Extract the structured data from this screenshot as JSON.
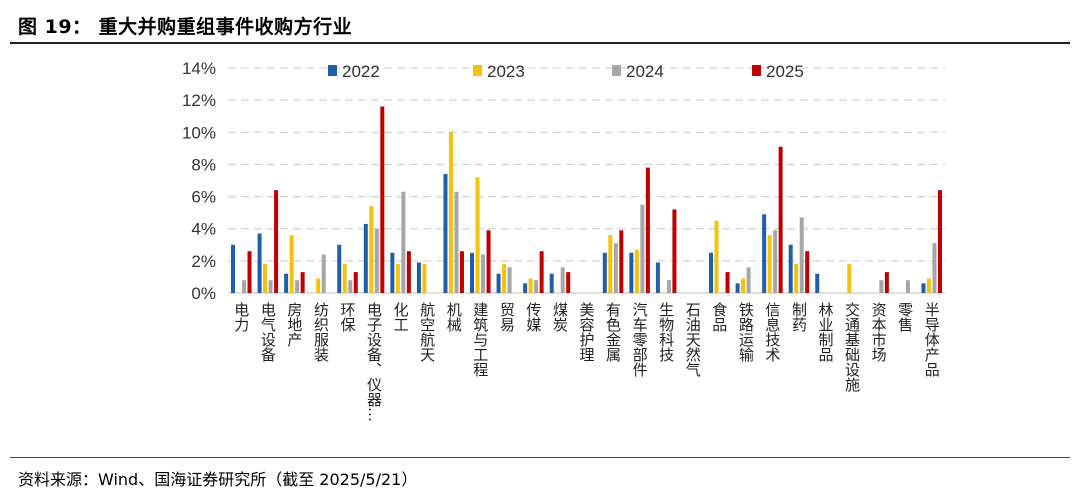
{
  "header": {
    "title": "图 19： 重大并购重组事件收购方行业"
  },
  "footer": {
    "source": "资料来源：Wind、国海证券研究所（截至 2025/5/21）"
  },
  "chart_data": {
    "type": "bar",
    "ylim": [
      0,
      14
    ],
    "yticks": [
      "0%",
      "2%",
      "4%",
      "6%",
      "8%",
      "10%",
      "12%",
      "14%"
    ],
    "grid": true,
    "legend_position": "top",
    "categories": [
      "电力",
      "电气设备",
      "房地产",
      "纺织服装",
      "环保",
      "电子设备、仪器…",
      "化工",
      "航空航天",
      "机械",
      "建筑与工程",
      "贸易",
      "传媒",
      "煤炭",
      "美容护理",
      "有色金属",
      "汽车零部件",
      "生物科技",
      "石油天然气",
      "食品",
      "铁路运输",
      "信息技术",
      "制药",
      "林业制品",
      "交通基础设施",
      "资本市场",
      "零售",
      "半导体产品"
    ],
    "series": [
      {
        "name": "2022",
        "color": "#1f5fa8",
        "values": [
          3.0,
          3.7,
          1.2,
          0,
          3.0,
          4.3,
          2.5,
          1.9,
          7.4,
          2.5,
          1.2,
          0.6,
          1.2,
          0,
          2.5,
          2.5,
          1.9,
          0,
          2.5,
          0.6,
          4.9,
          3.0,
          1.2,
          0,
          0,
          0,
          0.6
        ]
      },
      {
        "name": "2023",
        "color": "#f4c20d",
        "values": [
          0,
          1.8,
          3.6,
          0.9,
          1.8,
          5.4,
          1.8,
          1.8,
          10.0,
          7.2,
          1.8,
          0.9,
          0,
          0,
          3.6,
          2.7,
          0,
          0,
          4.5,
          0.9,
          3.6,
          1.8,
          0,
          1.8,
          0,
          0,
          0.9
        ]
      },
      {
        "name": "2024",
        "color": "#a6a6a6",
        "values": [
          0.8,
          0.8,
          0.8,
          2.4,
          0.8,
          4.0,
          6.3,
          0,
          6.3,
          2.4,
          1.6,
          0.8,
          1.6,
          0,
          3.1,
          5.5,
          0.8,
          0,
          0,
          1.6,
          3.9,
          4.7,
          0,
          0,
          0.8,
          0.8,
          3.1
        ]
      },
      {
        "name": "2025",
        "color": "#c00000",
        "values": [
          2.6,
          6.4,
          1.3,
          0,
          1.3,
          11.6,
          2.6,
          0,
          2.6,
          3.9,
          0,
          2.6,
          1.3,
          0,
          3.9,
          7.8,
          5.2,
          0,
          1.3,
          0,
          9.1,
          2.6,
          0,
          0,
          1.3,
          0,
          6.4
        ]
      }
    ]
  }
}
